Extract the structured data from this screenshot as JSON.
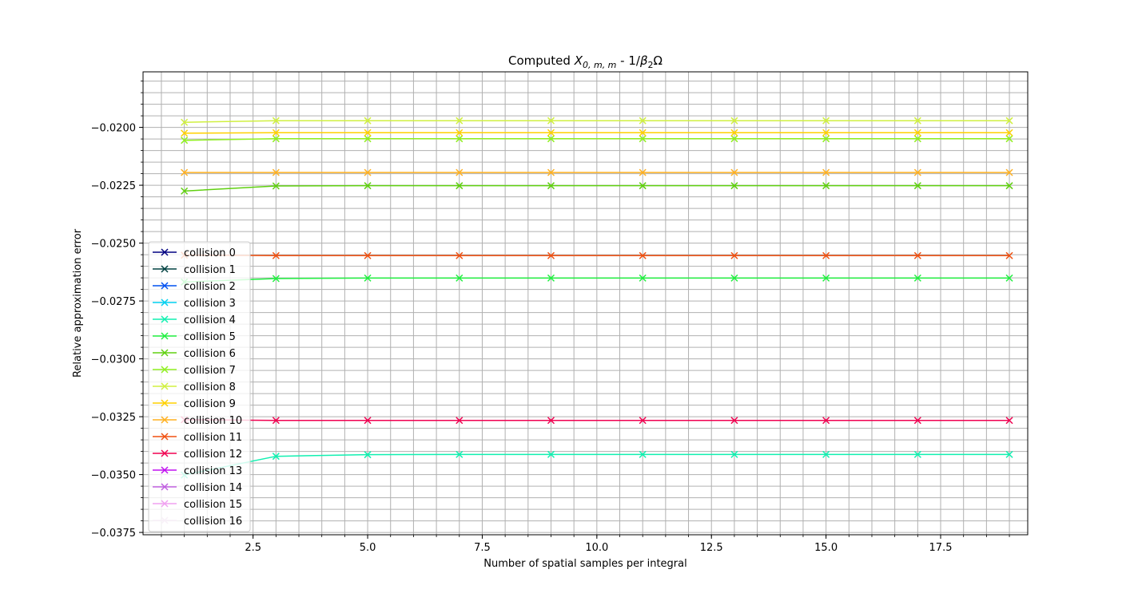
{
  "chart_data": {
    "type": "line",
    "title_main": "Computed ",
    "title_sym": "X",
    "title_sub": "0, m, m",
    "title_rest": " - 1/",
    "title_sym2": "β",
    "title_sub2": "2",
    "title_tail": "Ω",
    "xlabel": "Number of spatial samples per integral",
    "ylabel": "Relative approximation error",
    "xlim": [
      0.1,
      19.4
    ],
    "ylim": [
      -0.0376,
      -0.0176
    ],
    "xticks": [
      2.5,
      5.0,
      7.5,
      10.0,
      12.5,
      15.0,
      17.5
    ],
    "xtick_labels": [
      "2.5",
      "5.0",
      "7.5",
      "10.0",
      "12.5",
      "15.0",
      "17.5"
    ],
    "yticks": [
      -0.02,
      -0.0225,
      -0.025,
      -0.0275,
      -0.03,
      -0.0325,
      -0.035,
      -0.0375
    ],
    "ytick_labels": [
      "−0.0200",
      "−0.0225",
      "−0.0250",
      "−0.0275",
      "−0.0300",
      "−0.0325",
      "−0.0350",
      "−0.0375"
    ],
    "grid": true,
    "legend_position": "center-left",
    "x": [
      1,
      3,
      5,
      7,
      9,
      11,
      13,
      15,
      17,
      19
    ],
    "series": [
      {
        "name": "collision 0",
        "color": "#000080",
        "values": null
      },
      {
        "name": "collision 1",
        "color": "#004040",
        "values": null
      },
      {
        "name": "collision 2",
        "color": "#0050f0",
        "values": null
      },
      {
        "name": "collision 3",
        "color": "#00d0f0",
        "values": null
      },
      {
        "name": "collision 4",
        "color": "#10f0b0",
        "values": [
          -0.03502,
          -0.03421,
          -0.03414,
          -0.03413,
          -0.03413,
          -0.03413,
          -0.03413,
          -0.03413,
          -0.03413,
          -0.03413
        ]
      },
      {
        "name": "collision 5",
        "color": "#20f040",
        "values": [
          -0.02668,
          -0.02653,
          -0.02651,
          -0.02651,
          -0.02651,
          -0.02651,
          -0.02651,
          -0.02651,
          -0.02651,
          -0.02651
        ]
      },
      {
        "name": "collision 6",
        "color": "#60d010",
        "values": [
          -0.02275,
          -0.02253,
          -0.02252,
          -0.02252,
          -0.02252,
          -0.02252,
          -0.02252,
          -0.02252,
          -0.02252,
          -0.02252
        ]
      },
      {
        "name": "collision 7",
        "color": "#90f020",
        "values": [
          -0.02056,
          -0.02049,
          -0.02049,
          -0.02049,
          -0.02049,
          -0.02049,
          -0.02049,
          -0.02049,
          -0.02049,
          -0.02049
        ]
      },
      {
        "name": "collision 8",
        "color": "#d0f040",
        "values": [
          -0.01978,
          -0.01971,
          -0.01971,
          -0.01971,
          -0.01971,
          -0.01971,
          -0.01971,
          -0.01971,
          -0.01971,
          -0.01971
        ]
      },
      {
        "name": "collision 9",
        "color": "#ffd000",
        "values": [
          -0.02025,
          -0.02023,
          -0.02023,
          -0.02023,
          -0.02023,
          -0.02023,
          -0.02023,
          -0.02023,
          -0.02023,
          -0.02023
        ]
      },
      {
        "name": "collision 10",
        "color": "#ffb020",
        "values": [
          -0.02195,
          -0.02195,
          -0.02195,
          -0.02195,
          -0.02195,
          -0.02195,
          -0.02195,
          -0.02195,
          -0.02195,
          -0.02195
        ]
      },
      {
        "name": "collision 11",
        "color": "#f05010",
        "values": [
          -0.02552,
          -0.02554,
          -0.02554,
          -0.02554,
          -0.02554,
          -0.02554,
          -0.02554,
          -0.02554,
          -0.02554,
          -0.02554
        ]
      },
      {
        "name": "collision 12",
        "color": "#f00050",
        "values": [
          -0.03263,
          -0.03266,
          -0.03266,
          -0.03266,
          -0.03266,
          -0.03266,
          -0.03266,
          -0.03266,
          -0.03266,
          -0.03266
        ]
      },
      {
        "name": "collision 13",
        "color": "#c010f0",
        "values": null
      },
      {
        "name": "collision 14",
        "color": "#c060e0",
        "values": null
      },
      {
        "name": "collision 15",
        "color": "#f0a0f0",
        "values": null
      },
      {
        "name": "collision 16",
        "color": "#f8f0f8",
        "values": null
      }
    ]
  }
}
